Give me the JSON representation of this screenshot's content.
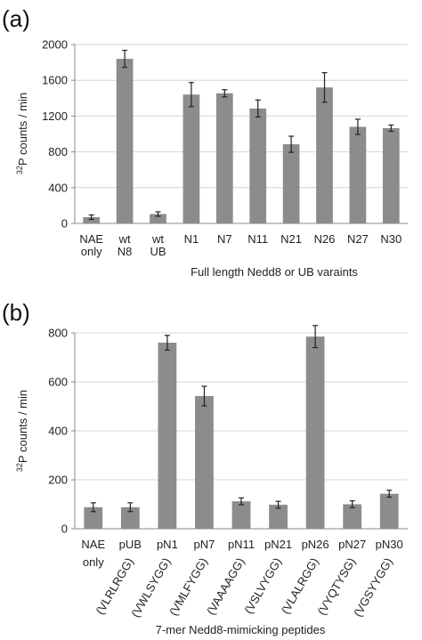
{
  "chart_data": [
    {
      "type": "bar",
      "panel_label": "(a)",
      "ylabel_sup": "32",
      "ylabel_main": "P counts / min",
      "xlabel": "Full length Nedd8 or UB varaints",
      "ylim": [
        0,
        2000
      ],
      "yticks": [
        "0",
        "400",
        "800",
        "1200",
        "1600",
        "2000"
      ],
      "grid": "horizontal",
      "bar_color": "#8c8c8c",
      "categories": [
        [
          "NAE",
          "only"
        ],
        [
          "wt",
          "N8"
        ],
        [
          "wt",
          "UB"
        ],
        [
          "N1"
        ],
        [
          "N7"
        ],
        [
          "N11"
        ],
        [
          "N21"
        ],
        [
          "N26"
        ],
        [
          "N27"
        ],
        [
          "N30"
        ]
      ],
      "values": [
        70,
        1840,
        105,
        1440,
        1455,
        1285,
        885,
        1520,
        1080,
        1065
      ],
      "errors": [
        25,
        95,
        25,
        135,
        40,
        95,
        90,
        165,
        85,
        35
      ]
    },
    {
      "type": "bar",
      "panel_label": "(b)",
      "ylabel_sup": "32",
      "ylabel_main": "P counts / min",
      "xlabel": "7-mer Nedd8-mimicking peptides",
      "ylim": [
        0,
        800
      ],
      "yticks": [
        "0",
        "200",
        "400",
        "600",
        "800"
      ],
      "grid": "horizontal",
      "bar_color": "#8c8c8c",
      "categories": [
        [
          "NAE",
          "only"
        ],
        [
          "pUB",
          "(VLRLRGG)"
        ],
        [
          "pN1",
          "(VWLSYGG)"
        ],
        [
          "pN7",
          "(VMLFYGG)"
        ],
        [
          "pN11",
          "(VAAAAGG)"
        ],
        [
          "pN21",
          "(VSLVYGG)"
        ],
        [
          "pN26",
          "(VLALRGG)"
        ],
        [
          "pN27",
          "(VYQTYSG)"
        ],
        [
          "pN30",
          "(VGSYYGG)"
        ]
      ],
      "values": [
        88,
        88,
        760,
        542,
        112,
        98,
        785,
        100,
        143
      ],
      "errors": [
        18,
        18,
        30,
        40,
        14,
        14,
        45,
        14,
        14
      ]
    }
  ]
}
